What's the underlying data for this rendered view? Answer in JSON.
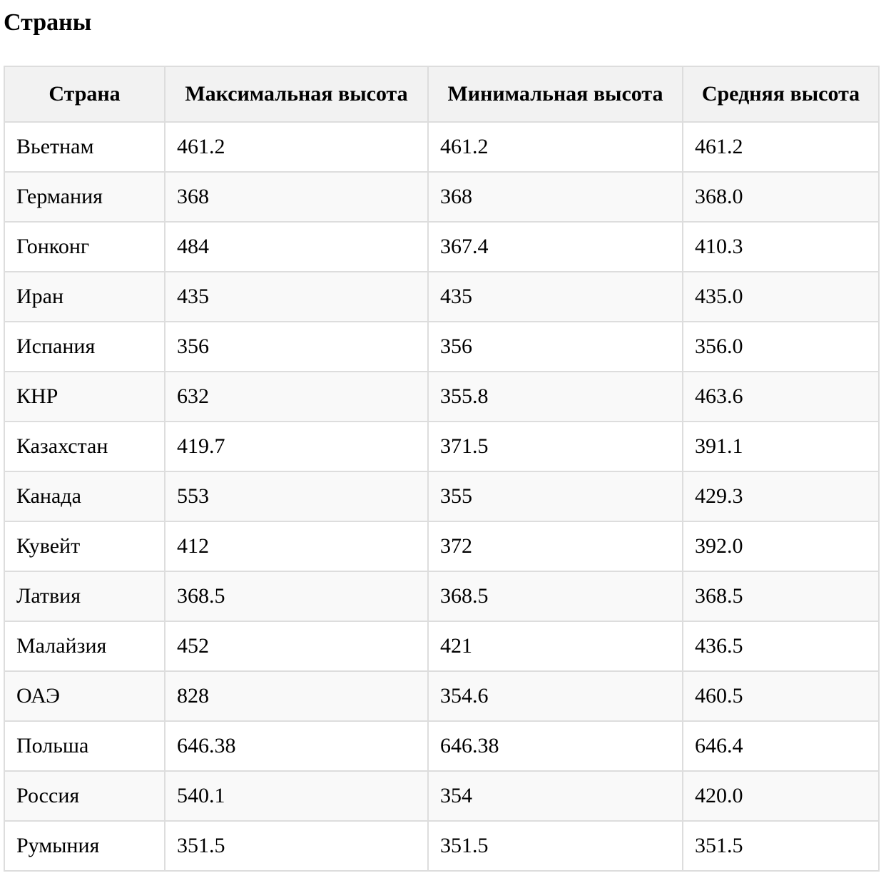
{
  "page": {
    "title": "Страны"
  },
  "table": {
    "headers": [
      "Страна",
      "Максимальная высота",
      "Минимальная высота",
      "Средняя высота"
    ],
    "rows": [
      [
        "Вьетнам",
        "461.2",
        "461.2",
        "461.2"
      ],
      [
        "Германия",
        "368",
        "368",
        "368.0"
      ],
      [
        "Гонконг",
        "484",
        "367.4",
        "410.3"
      ],
      [
        "Иран",
        "435",
        "435",
        "435.0"
      ],
      [
        "Испания",
        "356",
        "356",
        "356.0"
      ],
      [
        "КНР",
        "632",
        "355.8",
        "463.6"
      ],
      [
        "Казахстан",
        "419.7",
        "371.5",
        "391.1"
      ],
      [
        "Канада",
        "553",
        "355",
        "429.3"
      ],
      [
        "Кувейт",
        "412",
        "372",
        "392.0"
      ],
      [
        "Латвия",
        "368.5",
        "368.5",
        "368.5"
      ],
      [
        "Малайзия",
        "452",
        "421",
        "436.5"
      ],
      [
        "ОАЭ",
        "828",
        "354.6",
        "460.5"
      ],
      [
        "Польша",
        "646.38",
        "646.38",
        "646.4"
      ],
      [
        "Россия",
        "540.1",
        "354",
        "420.0"
      ],
      [
        "Румыния",
        "351.5",
        "351.5",
        "351.5"
      ]
    ]
  },
  "colors": {
    "header_background": "#f2f2f2",
    "striped_row_background": "#f9f9f9",
    "border": "#dddddd"
  }
}
